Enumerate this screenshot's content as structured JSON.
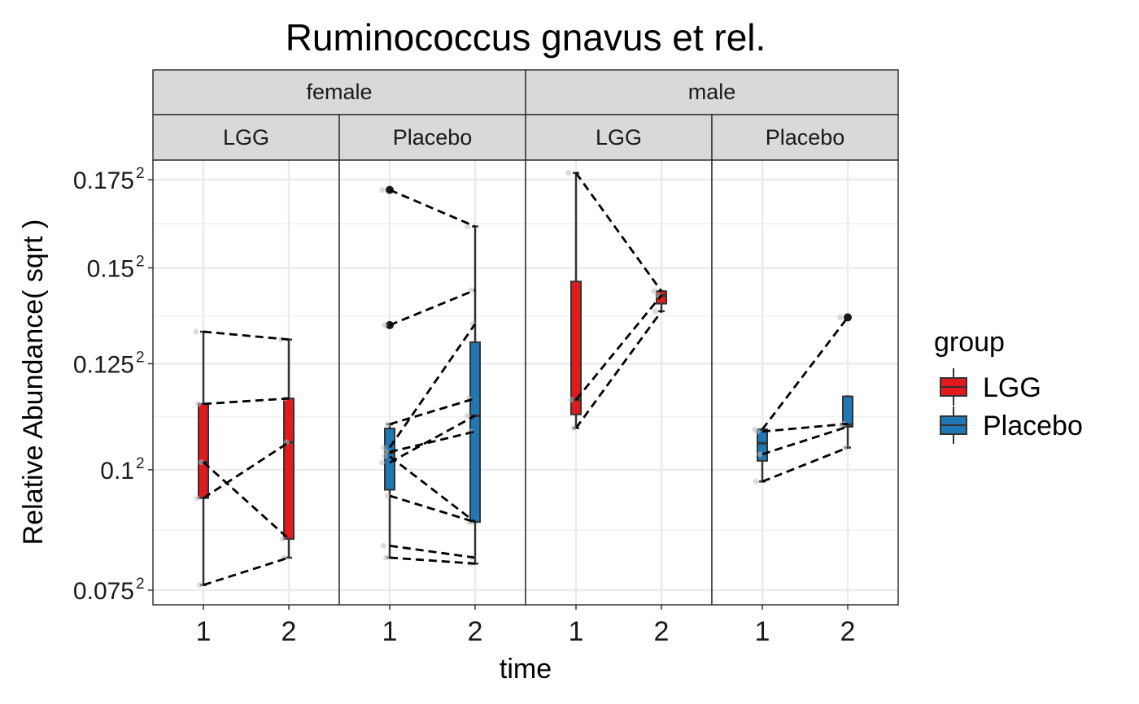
{
  "chart_data": {
    "type": "box",
    "title": "Ruminococcus gnavus et rel.",
    "xlabel": "time",
    "ylabel": "Relative Abundance( sqrt )",
    "y_scale": "sqrt",
    "ylim": [
      0.0722,
      0.1808
    ],
    "y_ticks": [
      {
        "value": 0.075,
        "base": "0.075",
        "exp": "2"
      },
      {
        "value": 0.1,
        "base": "0.1",
        "exp": "2"
      },
      {
        "value": 0.125,
        "base": "0.125",
        "exp": "2"
      },
      {
        "value": 0.15,
        "base": "0.15",
        "exp": "2"
      },
      {
        "value": 0.175,
        "base": "0.175",
        "exp": "2"
      }
    ],
    "x_categories": [
      "1",
      "2"
    ],
    "facet_top": [
      "female",
      "male"
    ],
    "facet_sub": [
      "LGG",
      "Placebo"
    ],
    "legend": {
      "title": "group",
      "position": "right",
      "entries": [
        {
          "label": "LGG",
          "color": "#e31a1c"
        },
        {
          "label": "Placebo",
          "color": "#1f78b4"
        }
      ]
    },
    "panels": [
      {
        "sex": "female",
        "group": "LGG",
        "color": "#e31a1c",
        "boxes": [
          {
            "time": "1",
            "min": 0.076,
            "q1": 0.0938,
            "median": 0.1017,
            "q3": 0.1152,
            "max": 0.1331,
            "outliers": []
          },
          {
            "time": "2",
            "min": 0.0814,
            "q1": 0.0852,
            "median": 0.1062,
            "q3": 0.1165,
            "max": 0.1311,
            "outliers": []
          }
        ],
        "pairs": [
          [
            0.1331,
            0.1311
          ],
          [
            0.1152,
            0.1165
          ],
          [
            0.1017,
            0.0852
          ],
          [
            0.0938,
            0.1062
          ],
          [
            0.076,
            0.0814
          ]
        ]
      },
      {
        "sex": "female",
        "group": "Placebo",
        "color": "#1f78b4",
        "boxes": [
          {
            "time": "1",
            "min": 0.0814,
            "q1": 0.0956,
            "median": 0.1038,
            "q3": 0.1094,
            "max": 0.1104,
            "outliers": [
              0.172,
              0.1348
            ]
          },
          {
            "time": "2",
            "min": 0.0802,
            "q1": 0.0887,
            "median": 0.1124,
            "q3": 0.1304,
            "max": 0.1615,
            "outliers": []
          }
        ],
        "pairs": [
          [
            0.172,
            0.1615
          ],
          [
            0.1348,
            0.144
          ],
          [
            0.1104,
            0.1165
          ],
          [
            0.105,
            0.1351
          ],
          [
            0.104,
            0.1087
          ],
          [
            0.1016,
            0.1124
          ],
          [
            0.103,
            0.0887
          ],
          [
            0.0943,
            0.0887
          ],
          [
            0.0838,
            0.0814
          ],
          [
            0.0814,
            0.0802
          ]
        ]
      },
      {
        "sex": "male",
        "group": "LGG",
        "color": "#e31a1c",
        "boxes": [
          {
            "time": "1",
            "min": 0.1095,
            "q1": 0.1127,
            "median": 0.1162,
            "q3": 0.1463,
            "max": 0.177,
            "outliers": []
          },
          {
            "time": "2",
            "min": 0.1384,
            "q1": 0.1404,
            "median": 0.1426,
            "q3": 0.1437,
            "max": 0.1437,
            "outliers": []
          }
        ],
        "pairs": [
          [
            0.177,
            0.1437
          ],
          [
            0.1162,
            0.1426
          ],
          [
            0.1095,
            0.1384
          ]
        ]
      },
      {
        "sex": "male",
        "group": "Placebo",
        "color": "#1f78b4",
        "boxes": [
          {
            "time": "1",
            "min": 0.0974,
            "q1": 0.102,
            "median": 0.106,
            "q3": 0.1092,
            "max": 0.1092,
            "outliers": []
          },
          {
            "time": "2",
            "min": 0.105,
            "q1": 0.1098,
            "median": 0.1103,
            "q3": 0.117,
            "max": 0.117,
            "outliers": [
              0.1368
            ]
          }
        ],
        "pairs": [
          [
            0.1092,
            0.1368
          ],
          [
            0.1087,
            0.1105
          ],
          [
            0.1035,
            0.1098
          ],
          [
            0.0974,
            0.105
          ]
        ]
      }
    ]
  }
}
